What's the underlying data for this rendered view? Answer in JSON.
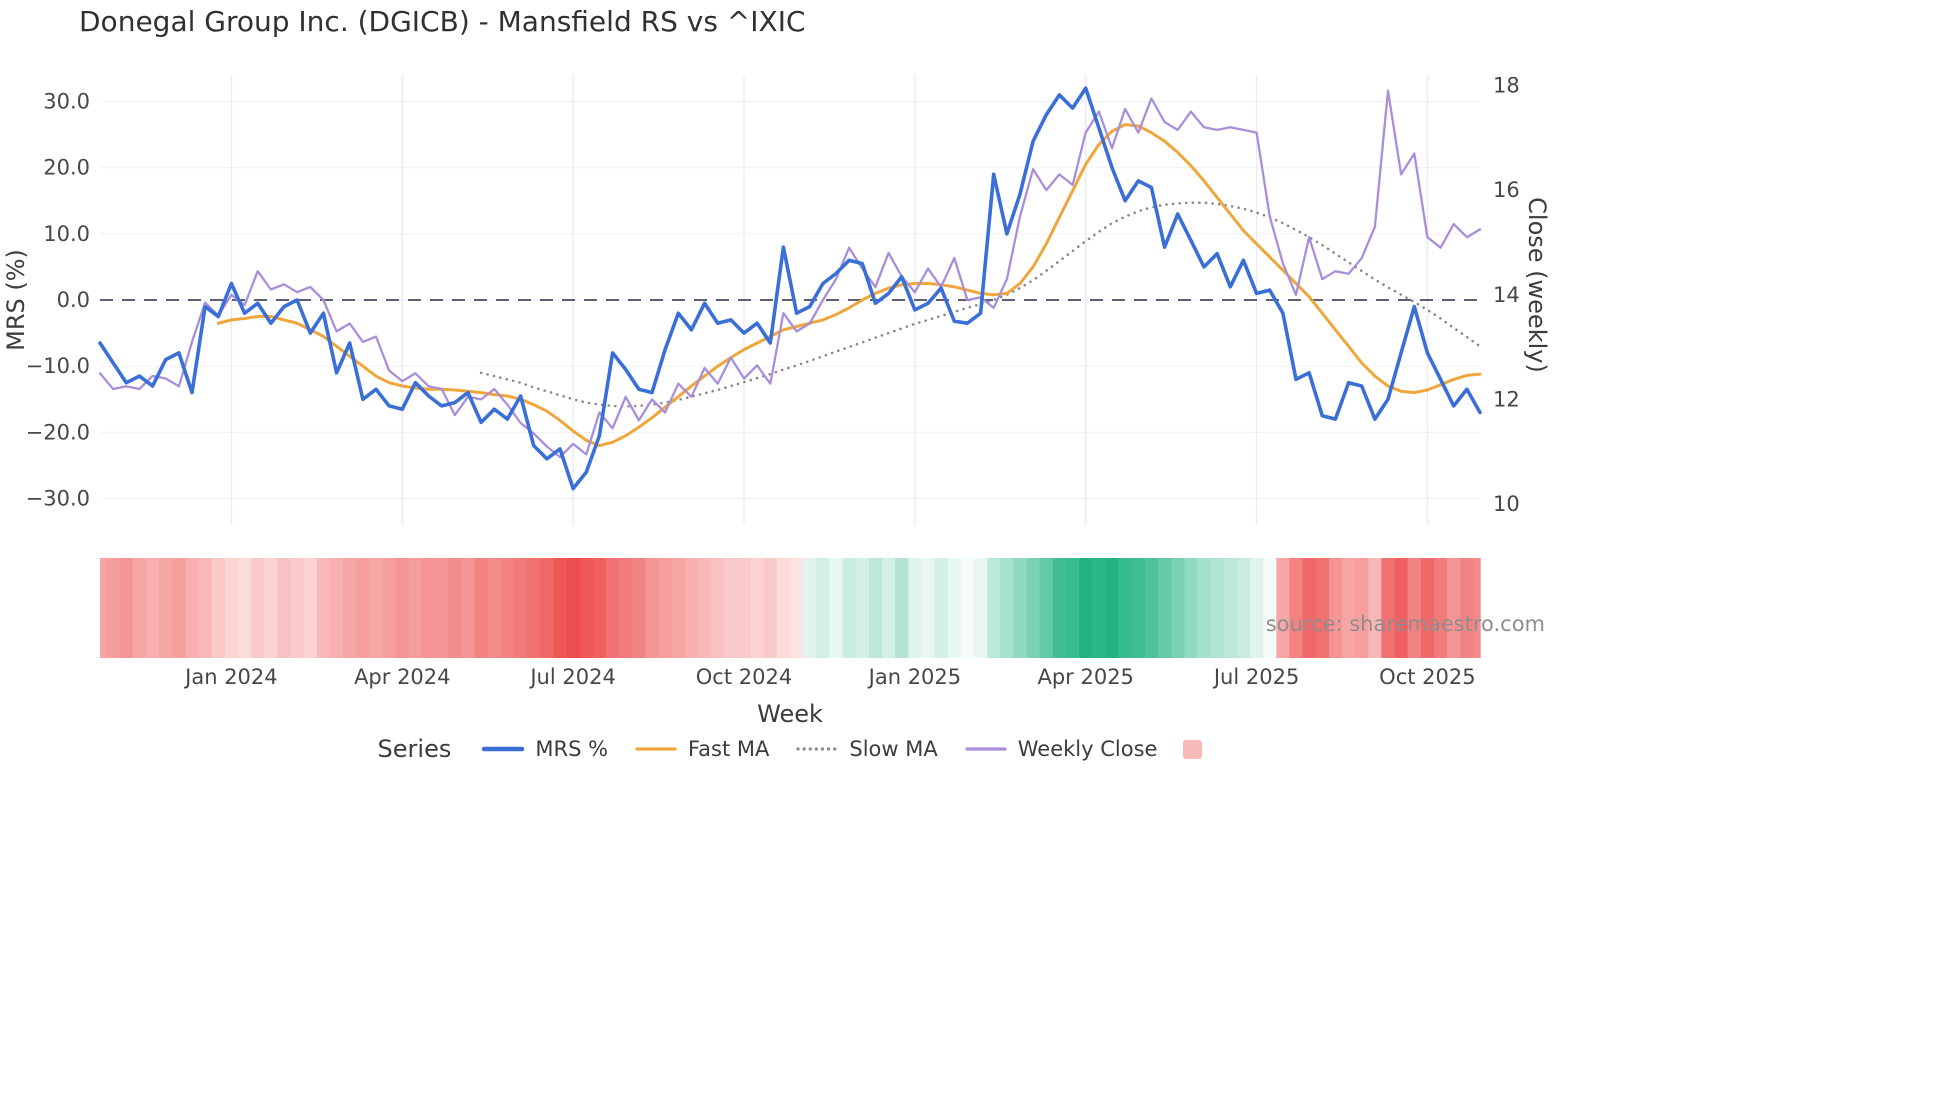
{
  "header": {
    "title": "Donegal Group Inc. (DGICB) - Mansfield RS vs ^IXIC"
  },
  "source": {
    "text": "source: sharemaestro.com"
  },
  "legend": {
    "title": "Series",
    "items": [
      {
        "label": "MRS %",
        "color": "#3a6fd8",
        "style": "solid"
      },
      {
        "label": "Fast MA",
        "color": "#efa63b",
        "style": "solid"
      },
      {
        "label": "Slow MA",
        "color": "#8a8a8a",
        "style": "dotted"
      },
      {
        "label": "Weekly Close",
        "color": "#a98fd9",
        "style": "solid"
      },
      {
        "label": "",
        "color": "#f8b9b9",
        "style": "swatch"
      }
    ]
  },
  "chart_data": {
    "type": "line",
    "title": "Donegal Group Inc. (DGICB) - Mansfield RS vs ^IXIC",
    "xlabel": "Week",
    "ylabel_left": "MRS (%)",
    "ylabel_right": "Close (weekly)",
    "grid": true,
    "legend_position": "bottom",
    "x_axis": {
      "tick_labels": [
        "Jan 2024",
        "Apr 2024",
        "Jul 2024",
        "Oct 2024",
        "Jan 2025",
        "Apr 2025",
        "Jul 2025",
        "Oct 2025"
      ],
      "tick_weeks": [
        10,
        23,
        36,
        49,
        62,
        75,
        88,
        101
      ],
      "total_weeks": 106
    },
    "left_axis": {
      "ticks": [
        "30.0",
        "20.0",
        "10.0",
        "0.0",
        "−10.0",
        "−20.0",
        "−30.0"
      ],
      "tick_values": [
        30,
        20,
        10,
        0,
        -10,
        -20,
        -30
      ],
      "range": [
        -34,
        34
      ]
    },
    "right_axis": {
      "ticks": [
        "18",
        "16",
        "14",
        "12",
        "10"
      ],
      "tick_values": [
        18,
        16,
        14,
        12,
        10
      ],
      "range": [
        9.6,
        18.2
      ]
    },
    "zero_line": 0,
    "colors": {
      "mrs": "#3a6fd8",
      "fast_ma": "#efa63b",
      "slow_ma": "#8a8a8a",
      "weekly_close": "#a98fd9",
      "zero_line": "#5e5e76",
      "grid": "#ebebf3",
      "heat_red": "#ee4d4d",
      "heat_green": "#21b384"
    },
    "series": [
      {
        "name": "MRS %",
        "axis": "left",
        "color": "#3a6fd8",
        "style": "solid",
        "start_week": 0,
        "values": [
          -6.5,
          -9.5,
          -12.5,
          -11.5,
          -13,
          -9,
          -8,
          -14,
          -1,
          -2.5,
          2.5,
          -2,
          -0.5,
          -3.5,
          -1,
          0,
          -5,
          -2,
          -11,
          -6.5,
          -15,
          -13.5,
          -16,
          -16.5,
          -12.5,
          -14.5,
          -16,
          -15.5,
          -14,
          -18.5,
          -16.5,
          -18,
          -14.5,
          -22,
          -24,
          -22.5,
          -28.5,
          -26,
          -20.5,
          -8,
          -10.5,
          -13.5,
          -14,
          -7.5,
          -2,
          -4.5,
          -0.5,
          -3.5,
          -3,
          -5,
          -3.5,
          -6.5,
          8,
          -2,
          -1,
          2.5,
          4,
          6,
          5.5,
          -0.5,
          1,
          3.5,
          -1.5,
          -0.5,
          1.8,
          -3.2,
          -3.5,
          -2,
          19,
          10,
          16,
          24,
          28,
          31,
          29,
          32,
          26,
          20,
          15,
          18,
          17,
          8,
          13,
          9,
          5,
          7,
          2,
          6,
          1,
          1.5,
          -2,
          -12,
          -11,
          -17.5,
          -18,
          -12.5,
          -13,
          -18,
          -15,
          -8,
          -1,
          -8,
          -12,
          -16,
          -13.5,
          -17
        ]
      },
      {
        "name": "Fast MA",
        "axis": "left",
        "color": "#efa63b",
        "style": "solid",
        "start_week": 9,
        "values": [
          -3.5,
          -3,
          -2.8,
          -2.5,
          -2.5,
          -3,
          -3.5,
          -4.5,
          -5.5,
          -7,
          -8.5,
          -10,
          -11.5,
          -12.5,
          -13,
          -13.3,
          -13.5,
          -13.5,
          -13.6,
          -13.8,
          -14,
          -14.3,
          -14.5,
          -15,
          -15.8,
          -16.8,
          -18.2,
          -19.8,
          -21.2,
          -22,
          -21.5,
          -20.5,
          -19.2,
          -17.8,
          -16.2,
          -14.6,
          -13,
          -11.5,
          -10,
          -8.7,
          -7.5,
          -6.5,
          -5.5,
          -4.5,
          -4,
          -3.5,
          -3,
          -2.2,
          -1.2,
          0,
          1,
          1.8,
          2.3,
          2.5,
          2.5,
          2.3,
          2,
          1.5,
          1,
          0.8,
          1,
          2.5,
          5,
          8.5,
          12.5,
          16.5,
          20.5,
          23.5,
          25.5,
          26.5,
          26.3,
          25.3,
          24,
          22.3,
          20.3,
          18,
          15.5,
          13,
          10.5,
          8.5,
          6.5,
          4.5,
          2.5,
          0.5,
          -2,
          -4.5,
          -7,
          -9.5,
          -11.5,
          -13,
          -13.8,
          -14,
          -13.6,
          -12.8,
          -12,
          -11.4,
          -11.2
        ]
      },
      {
        "name": "Slow MA",
        "axis": "left",
        "color": "#8a8a8a",
        "style": "dotted",
        "start_week": 29,
        "values": [
          -11,
          -11.5,
          -12,
          -12.5,
          -13.2,
          -13.8,
          -14.4,
          -15,
          -15.5,
          -15.8,
          -16,
          -16.1,
          -16,
          -15.8,
          -15.5,
          -15.1,
          -14.6,
          -14.1,
          -13.6,
          -13,
          -12.4,
          -11.8,
          -11.2,
          -10.5,
          -9.9,
          -9.2,
          -8.5,
          -7.8,
          -7.1,
          -6.4,
          -5.7,
          -5,
          -4.3,
          -3.6,
          -3,
          -2.4,
          -1.8,
          -1.2,
          -0.6,
          0,
          0.8,
          1.8,
          3,
          4.4,
          5.9,
          7.4,
          8.9,
          10.3,
          11.6,
          12.6,
          13.4,
          14,
          14.4,
          14.6,
          14.7,
          14.7,
          14.5,
          14.2,
          13.8,
          13.2,
          12.5,
          11.6,
          10.6,
          9.5,
          8.3,
          7,
          5.7,
          4.4,
          3.1,
          1.9,
          0.8,
          -0.3,
          -1.5,
          -2.8,
          -4.2,
          -5.6,
          -7
        ]
      },
      {
        "name": "Weekly Close",
        "axis": "right",
        "color": "#a98fd9",
        "style": "solid",
        "start_week": 0,
        "values": [
          12.5,
          12.2,
          12.25,
          12.2,
          12.45,
          12.4,
          12.25,
          13.1,
          13.85,
          13.6,
          14.0,
          13.8,
          14.45,
          14.1,
          14.2,
          14.05,
          14.15,
          13.9,
          13.3,
          13.45,
          13.1,
          13.2,
          12.55,
          12.35,
          12.5,
          12.25,
          12.2,
          11.7,
          12.05,
          12.0,
          12.2,
          11.9,
          11.55,
          11.35,
          11.1,
          10.9,
          11.15,
          10.95,
          11.75,
          11.45,
          12.05,
          11.6,
          12.0,
          11.75,
          12.3,
          12.05,
          12.6,
          12.3,
          12.8,
          12.4,
          12.65,
          12.3,
          13.65,
          13.3,
          13.45,
          13.9,
          14.3,
          14.9,
          14.5,
          14.15,
          14.8,
          14.35,
          14.05,
          14.5,
          14.15,
          14.7,
          13.9,
          13.95,
          13.75,
          14.3,
          15.5,
          16.4,
          16.0,
          16.3,
          16.1,
          17.1,
          17.5,
          16.8,
          17.55,
          17.1,
          17.75,
          17.3,
          17.15,
          17.5,
          17.2,
          17.15,
          17.2,
          17.15,
          17.1,
          15.5,
          14.6,
          14.0,
          15.1,
          14.3,
          14.45,
          14.4,
          14.7,
          15.3,
          17.9,
          16.3,
          16.7,
          15.1,
          14.9,
          15.35,
          15.1,
          15.25
        ]
      }
    ],
    "heatmap": {
      "description": "weekly signal strip below chart, red negative to green positive",
      "start_week": 0,
      "values": [
        -0.5,
        -0.55,
        -0.6,
        -0.5,
        -0.45,
        -0.5,
        -0.55,
        -0.45,
        -0.4,
        -0.3,
        -0.25,
        -0.2,
        -0.3,
        -0.25,
        -0.35,
        -0.3,
        -0.25,
        -0.4,
        -0.45,
        -0.5,
        -0.55,
        -0.5,
        -0.55,
        -0.6,
        -0.55,
        -0.6,
        -0.6,
        -0.65,
        -0.6,
        -0.7,
        -0.65,
        -0.7,
        -0.75,
        -0.8,
        -0.85,
        -0.95,
        -1.0,
        -0.95,
        -0.9,
        -0.8,
        -0.75,
        -0.7,
        -0.6,
        -0.55,
        -0.5,
        -0.45,
        -0.4,
        -0.35,
        -0.3,
        -0.3,
        -0.25,
        -0.3,
        -0.2,
        -0.15,
        0.15,
        0.2,
        0.1,
        0.25,
        0.2,
        0.3,
        0.2,
        0.35,
        0.15,
        0.1,
        0.2,
        0.1,
        0.05,
        0.1,
        0.3,
        0.4,
        0.5,
        0.6,
        0.7,
        0.85,
        0.9,
        1.0,
        0.95,
        1.0,
        0.9,
        0.85,
        0.8,
        0.7,
        0.6,
        0.5,
        0.4,
        0.35,
        0.3,
        0.25,
        0.15,
        0.05,
        -0.5,
        -0.7,
        -0.85,
        -0.8,
        -0.6,
        -0.5,
        -0.55,
        -0.4,
        -0.8,
        -0.9,
        -0.7,
        -0.85,
        -0.75,
        -0.6,
        -0.7,
        -0.65
      ]
    }
  }
}
